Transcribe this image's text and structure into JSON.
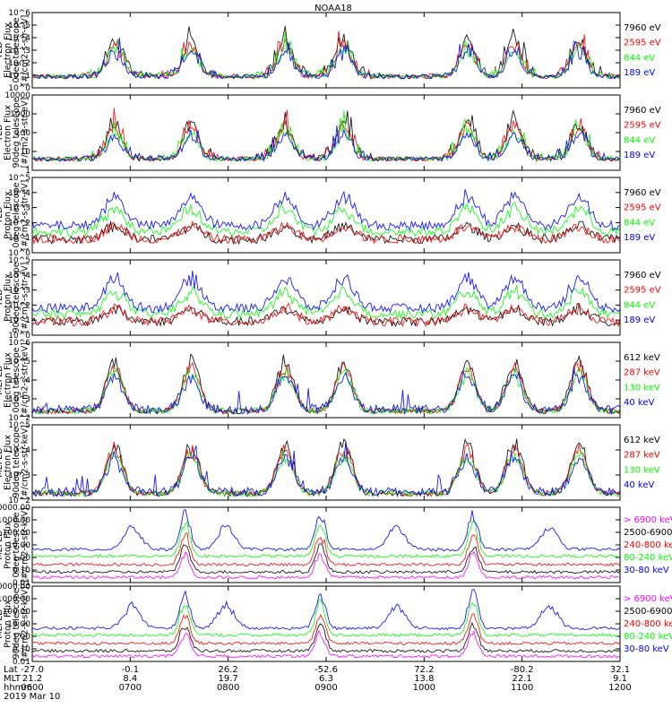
{
  "title": "NOAA18",
  "footer": {
    "row_labels": [
      "Lat",
      "MLT",
      "hhmm"
    ],
    "date": "2019 Mar 10",
    "lat": [
      "-27.0",
      "-0.1",
      "26.2",
      "-52.6",
      "72.2",
      "-80.2",
      "32.1"
    ],
    "mlt": [
      "21.2",
      "8.4",
      "19.7",
      "6.3",
      "13.8",
      "22.1",
      "9.1"
    ],
    "hhmm": [
      "0600",
      "0700",
      "0800",
      "0900",
      "1000",
      "1100",
      "1200"
    ]
  },
  "colors": {
    "black": "#000000",
    "red": "#ff0000",
    "green": "#00ff00",
    "blue": "#0000ff",
    "magenta": "#ff00ff"
  },
  "chart_data": [
    {
      "type": "line",
      "ylabel": [
        "TED",
        "Electron Flux",
        "0deg telescope",
        "[#/cm2-s-str-eV]"
      ],
      "yscale": "log",
      "yticks": [
        "10^0",
        "10^1",
        "10^2",
        "10^3",
        "10^4",
        "10^5",
        "10^6"
      ],
      "ylim": [
        1,
        1000000
      ],
      "series": [
        {
          "name": "7960 eV",
          "color": "#000000"
        },
        {
          "name": "2595 eV",
          "color": "#ff0000"
        },
        {
          "name": "844 eV",
          "color": "#00ff00"
        },
        {
          "name": "189 eV",
          "color": "#0000ff"
        }
      ]
    },
    {
      "type": "line",
      "ylabel": [
        "TED",
        "Electron Flux",
        "90deg telescope",
        "[#/cm2-s-str-eV]"
      ],
      "yscale": "log",
      "yticks": [
        "1",
        "10",
        "100",
        "1000",
        "10000"
      ],
      "ylim": [
        1,
        10000
      ],
      "series": [
        {
          "name": "7960 eV",
          "color": "#000000"
        },
        {
          "name": "2595 eV",
          "color": "#ff0000"
        },
        {
          "name": "844 eV",
          "color": "#00ff00"
        },
        {
          "name": "189 eV",
          "color": "#0000ff"
        }
      ]
    },
    {
      "type": "line",
      "ylabel": [
        "TED",
        "Proton Flux",
        "0deg telescope",
        "[#/cm2-s-str-eV]"
      ],
      "yscale": "log",
      "yticks": [
        "10^0",
        "10^1",
        "10^2",
        "10^3",
        "10^4",
        "10^5"
      ],
      "ylim": [
        1,
        100000
      ],
      "series": [
        {
          "name": "7960 eV",
          "color": "#000000"
        },
        {
          "name": "2595 eV",
          "color": "#ff0000"
        },
        {
          "name": "844 eV",
          "color": "#00ff00"
        },
        {
          "name": "189 eV",
          "color": "#0000ff"
        }
      ]
    },
    {
      "type": "line",
      "ylabel": [
        "TED",
        "Proton Flux",
        "90deg telescope",
        "[#/cm2-s-str-eV]"
      ],
      "yscale": "log",
      "yticks": [
        "10^0",
        "10^1",
        "10^2",
        "10^3",
        "10^4",
        "10^5"
      ],
      "ylim": [
        1,
        100000
      ],
      "series": [
        {
          "name": "7960 eV",
          "color": "#000000"
        },
        {
          "name": "2595 eV",
          "color": "#ff0000"
        },
        {
          "name": "844 eV",
          "color": "#00ff00"
        },
        {
          "name": "189 eV",
          "color": "#0000ff"
        }
      ]
    },
    {
      "type": "line",
      "ylabel": [
        "MEPED",
        "Electron Flux",
        "0deg telescope",
        "[#/cm2-s-str-keV]"
      ],
      "yscale": "log",
      "yticks": [
        "10^2",
        "10^3",
        "10^4",
        "10^5",
        "10^6"
      ],
      "ylim": [
        100,
        1000000
      ],
      "series": [
        {
          "name": "612 keV",
          "color": "#000000"
        },
        {
          "name": "287 keV",
          "color": "#ff0000"
        },
        {
          "name": "130 keV",
          "color": "#00ff00"
        },
        {
          "name": "40 keV",
          "color": "#0000ff"
        }
      ]
    },
    {
      "type": "line",
      "ylabel": [
        "MEPED",
        "Electron Flux",
        "90deg telescope",
        "[#/cm2-s-str-keV]"
      ],
      "yscale": "log",
      "yticks": [
        "10^2",
        "10^3",
        "10^4",
        "10^5"
      ],
      "ylim": [
        100,
        100000
      ],
      "series": [
        {
          "name": "612 keV",
          "color": "#000000"
        },
        {
          "name": "287 keV",
          "color": "#ff0000"
        },
        {
          "name": "130 keV",
          "color": "#00ff00"
        },
        {
          "name": "40 keV",
          "color": "#0000ff"
        }
      ]
    },
    {
      "type": "line",
      "ylabel": [
        "MEPED",
        "Proton Flux",
        "0deg telescope",
        "[#/cm2-s-str-keV]"
      ],
      "yscale": "log",
      "yticks": [
        "0.01",
        "0.10",
        "1.00",
        "10.00",
        "100.00",
        "1000.00",
        "10000.00"
      ],
      "ylim": [
        0.01,
        10000
      ],
      "series": [
        {
          "name": "> 6900 keV",
          "color": "#ff00ff"
        },
        {
          "name": "2500-6900",
          "color": "#000000"
        },
        {
          "name": "240-800 keV",
          "color": "#ff0000"
        },
        {
          "name": "80-240 keV",
          "color": "#00ff00"
        },
        {
          "name": "30-80 keV",
          "color": "#0000ff"
        }
      ]
    },
    {
      "type": "line",
      "ylabel": [
        "MEPED",
        "Proton Flux",
        "90deg telescope",
        "[#/cm2-s-str-keV]"
      ],
      "yscale": "log",
      "yticks": [
        "0.01",
        "0.10",
        "1.00",
        "10.00",
        "100.00",
        "1000.00",
        "10000.00"
      ],
      "ylim": [
        0.01,
        10000
      ],
      "series": [
        {
          "name": "> 6900 keV",
          "color": "#ff00ff"
        },
        {
          "name": "2500-6900",
          "color": "#000000"
        },
        {
          "name": "240-800 keV",
          "color": "#ff0000"
        },
        {
          "name": "80-240 keV",
          "color": "#00ff00"
        },
        {
          "name": "30-80 keV",
          "color": "#0000ff"
        }
      ]
    }
  ]
}
